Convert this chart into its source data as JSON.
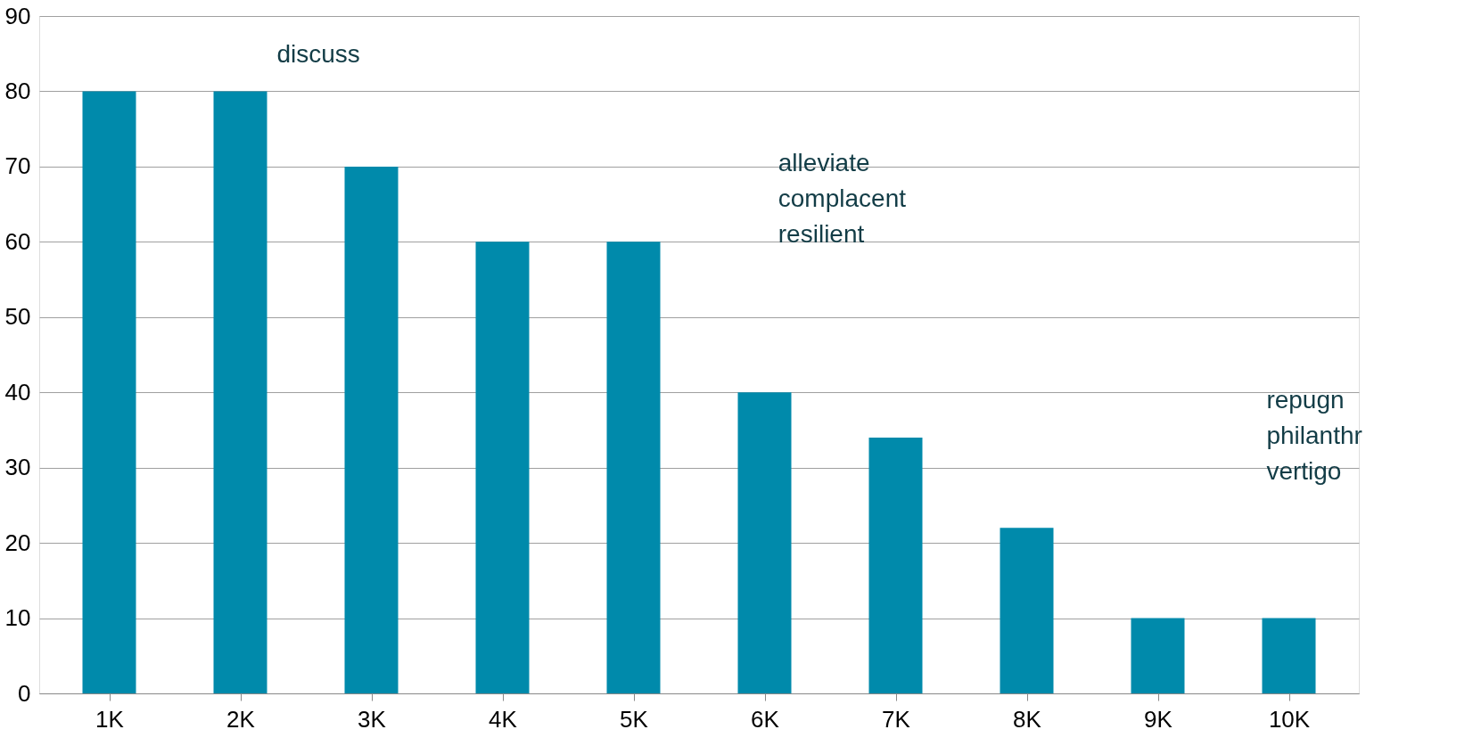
{
  "chart_data": {
    "type": "bar",
    "categories": [
      "1K",
      "2K",
      "3K",
      "4K",
      "5K",
      "6K",
      "7K",
      "8K",
      "9K",
      "10K"
    ],
    "values": [
      80,
      80,
      70,
      60,
      60,
      40,
      34,
      22,
      10,
      10
    ],
    "color": "#008aab",
    "ylim": [
      0,
      90
    ],
    "yticks": [
      0,
      10,
      20,
      30,
      40,
      50,
      60,
      70,
      80,
      90
    ],
    "grid": "y",
    "annotations": [
      "discuss",
      "alleviate\ncomplacent\nresilient",
      "repugn\nphilanthr\nvertigo"
    ]
  }
}
